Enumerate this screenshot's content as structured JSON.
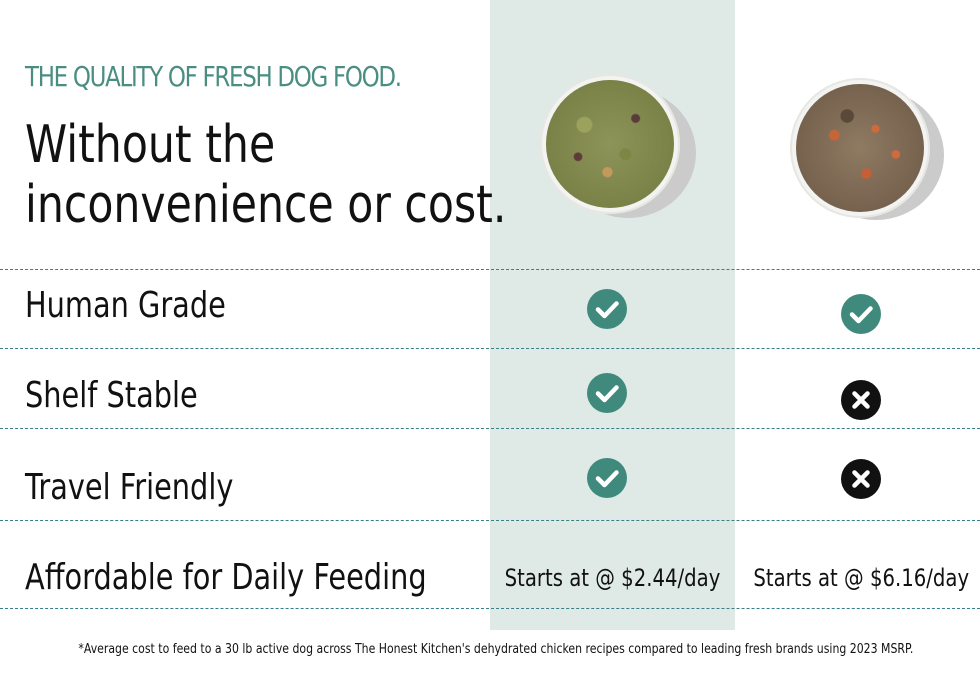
{
  "header": {
    "eyebrow": "THE QUALITY OF FRESH DOG FOOD.",
    "headline_line1": "Without the",
    "headline_line2": "inconvenience or cost."
  },
  "colors": {
    "accent": "#4a8e82",
    "highlight_column": "#dfeae7",
    "check": "#3f8a7c",
    "cross": "#111111",
    "divider": "#3b7f86"
  },
  "products": [
    {
      "image": "dehydrated-dog-food-bowl"
    },
    {
      "image": "fresh-dog-food-bowl"
    }
  ],
  "rows": [
    {
      "label": "Human Grade",
      "col1": "check-icon",
      "col2": "check-icon"
    },
    {
      "label": "Shelf Stable",
      "col1": "check-icon",
      "col2": "x-icon"
    },
    {
      "label": "Travel Friendly",
      "col1": "check-icon",
      "col2": "x-icon"
    }
  ],
  "price_row": {
    "label": "Affordable for Daily Feeding",
    "col1": "Starts at @ $2.44/day",
    "col2": "Starts at @ $6.16/day"
  },
  "footnote": "*Average cost to feed to a 30 lb active dog across The Honest Kitchen's dehydrated chicken recipes compared to leading fresh brands using 2023 MSRP."
}
